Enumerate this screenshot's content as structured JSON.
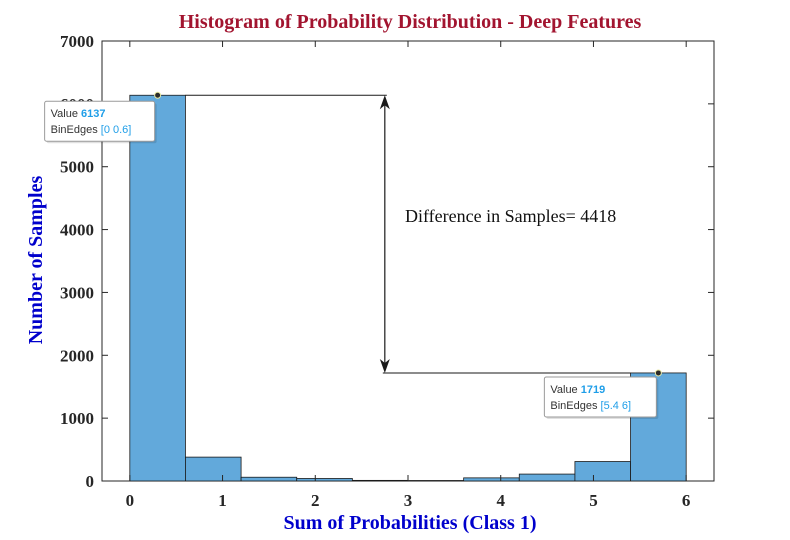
{
  "colors": {
    "bar_fill": "#62a9db",
    "bar_edge": "#1a1a1a",
    "title": "#a2142f",
    "axis_label": "#0000cc",
    "datatip_value": "#1f9ee8"
  },
  "chart_data": {
    "type": "bar",
    "title": "Histogram of Probability Distribution - Deep Features",
    "xlabel": "Sum of Probabilities (Class 1)",
    "ylabel": "Number of Samples",
    "xlim": [
      -0.3,
      6.3
    ],
    "ylim": [
      0,
      7000
    ],
    "xticks": [
      0,
      1,
      2,
      3,
      4,
      5,
      6
    ],
    "yticks": [
      0,
      1000,
      2000,
      3000,
      4000,
      5000,
      6000,
      7000
    ],
    "bin_edges": [
      0,
      0.6,
      1.2,
      1.8,
      2.4,
      3.0,
      3.6,
      4.2,
      4.8,
      5.4,
      6.0
    ],
    "values": [
      6137,
      380,
      60,
      40,
      10,
      8,
      50,
      110,
      310,
      1719
    ],
    "grid": false,
    "annotation": {
      "text": "Difference in Samples= 4418",
      "arrow_x": 2.75,
      "from": 6137,
      "to": 1719
    },
    "datatips": [
      {
        "value_label": "Value",
        "value": "6137",
        "edges_label": "BinEdges",
        "edges": "[0 0.6]",
        "x": 0.3,
        "y": 6137
      },
      {
        "value_label": "Value",
        "value": "1719",
        "edges_label": "BinEdges",
        "edges": "[5.4 6]",
        "x": 5.7,
        "y": 1719
      }
    ]
  }
}
